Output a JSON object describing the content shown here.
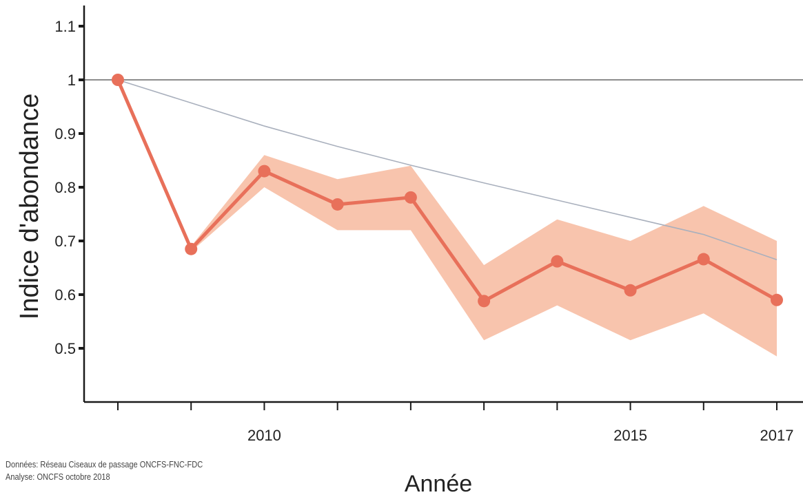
{
  "chart_data": {
    "type": "line",
    "xlabel": "Année",
    "ylabel": "Indice d'abondance",
    "x": [
      2008,
      2009,
      2010,
      2011,
      2012,
      2013,
      2014,
      2015,
      2016,
      2017
    ],
    "x_tick_labels": [
      "",
      "",
      "2010",
      "",
      "",
      "",
      "",
      "2015",
      "",
      "2017"
    ],
    "y_ticks": [
      0.5,
      0.6,
      0.7,
      0.8,
      0.9,
      1,
      1.1
    ],
    "y_tick_labels": [
      "0.5",
      "0.6",
      "0.7",
      "0.8",
      "0.9",
      "1",
      "1.1"
    ],
    "xlim": [
      2007.5,
      2017.5
    ],
    "ylim": [
      0.4,
      1.14
    ],
    "series": [
      {
        "values": [
          1.0,
          0.685,
          0.83,
          0.768,
          0.781,
          0.588,
          0.662,
          0.608,
          0.666,
          0.59
        ],
        "ci_lower": [
          1.0,
          0.68,
          0.8,
          0.72,
          0.72,
          0.515,
          0.58,
          0.515,
          0.565,
          0.485
        ],
        "ci_upper": [
          1.0,
          0.69,
          0.86,
          0.815,
          0.84,
          0.655,
          0.74,
          0.7,
          0.765,
          0.7
        ],
        "color": "#e8705a",
        "band_color": "#f8c4ad"
      }
    ],
    "trend": {
      "values": [
        1.0,
        0.957,
        0.914,
        0.876,
        0.841,
        0.808,
        0.776,
        0.744,
        0.712,
        0.665
      ],
      "color": "#a9b0bd"
    },
    "reference_line": {
      "y": 1,
      "color": "#8c8c8c"
    },
    "grid": false,
    "source_lines": [
      "Données: Réseau Ciseaux de passage ONCFS-FNC-FDC",
      "Analyse: ONCFS octobre 2018"
    ]
  }
}
